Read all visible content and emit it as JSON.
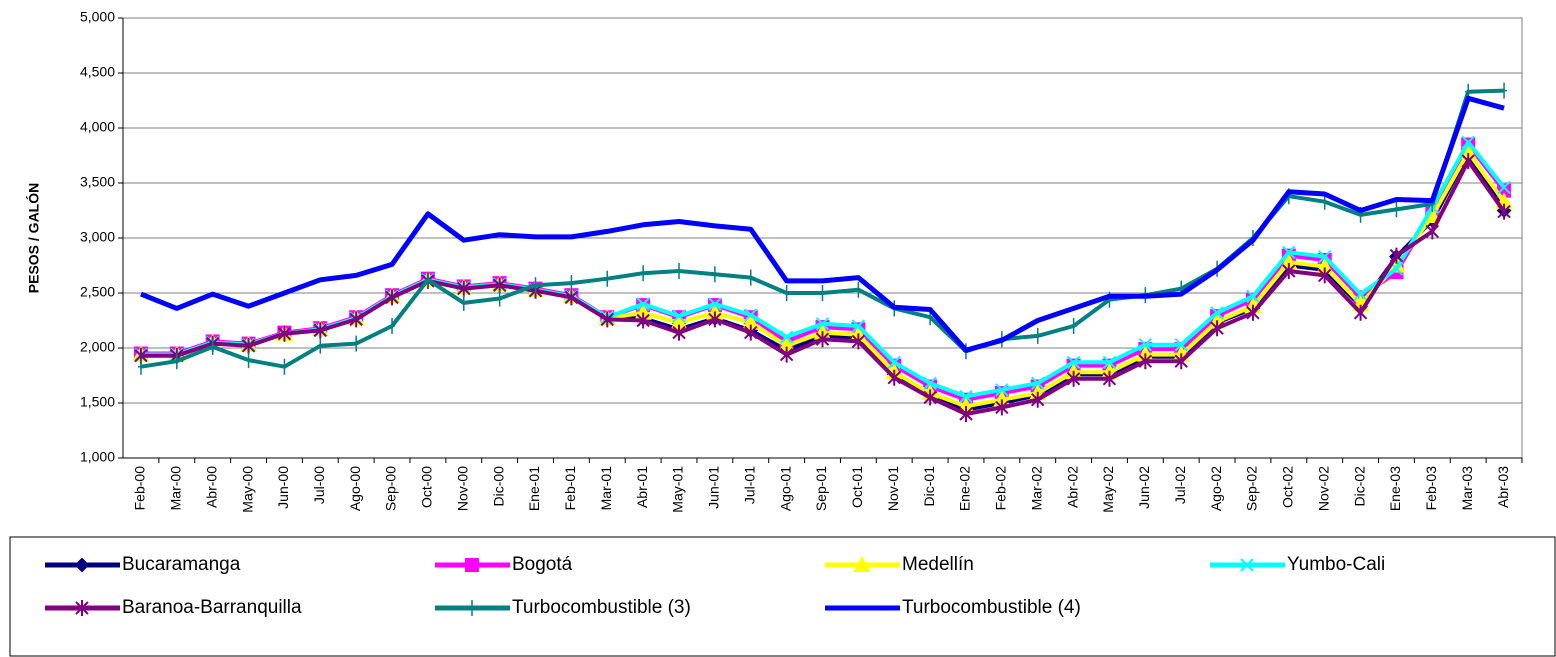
{
  "chart_data": {
    "type": "line",
    "y_label": "PESOS / GALÓN",
    "categories": [
      "Feb-00",
      "Mar-00",
      "Abr-00",
      "May-00",
      "Jun-00",
      "Jul-00",
      "Ago-00",
      "Sep-00",
      "Oct-00",
      "Nov-00",
      "Dic-00",
      "Ene-01",
      "Feb-01",
      "Mar-01",
      "Abr-01",
      "May-01",
      "Jun-01",
      "Jul-01",
      "Ago-01",
      "Sep-01",
      "Oct-01",
      "Nov-01",
      "Dic-01",
      "Ene-02",
      "Feb-02",
      "Mar-02",
      "Abr-02",
      "May-02",
      "Jun-02",
      "Jul-02",
      "Ago-02",
      "Sep-02",
      "Oct-02",
      "Nov-02",
      "Dic-02",
      "Ene-03",
      "Feb-03",
      "Mar-03",
      "Abr-03"
    ],
    "ylim": [
      1000,
      5000
    ],
    "yticks": [
      {
        "value": 1000,
        "label": "1,000"
      },
      {
        "value": 1500,
        "label": "1,500"
      },
      {
        "value": 2000,
        "label": "2,000"
      },
      {
        "value": 2500,
        "label": "2,500"
      },
      {
        "value": 3000,
        "label": "3,000"
      },
      {
        "value": 3500,
        "label": "3,500"
      },
      {
        "value": 4000,
        "label": "4,000"
      },
      {
        "value": 4500,
        "label": "4,500"
      },
      {
        "value": 5000,
        "label": "5,000"
      }
    ],
    "grid": true,
    "legend": "bottom",
    "series": [
      {
        "name": "Bucaramanga",
        "color": "#000080",
        "marker": "diamond",
        "values": [
          1940,
          1940,
          2050,
          2030,
          2140,
          2170,
          2270,
          2470,
          2620,
          2550,
          2580,
          2530,
          2470,
          2270,
          2270,
          2170,
          2270,
          2160,
          1980,
          2110,
          2090,
          1760,
          1580,
          1440,
          1500,
          1570,
          1760,
          1760,
          1920,
          1920,
          2230,
          2360,
          2750,
          2710,
          2380,
          2830,
          3160,
          3770,
          3250
        ]
      },
      {
        "name": "Bogotá",
        "color": "#ff00ff",
        "marker": "square",
        "values": [
          1950,
          1950,
          2060,
          2040,
          2140,
          2180,
          2280,
          2480,
          2630,
          2560,
          2590,
          2540,
          2480,
          2280,
          2390,
          2280,
          2390,
          2280,
          2060,
          2190,
          2170,
          1840,
          1650,
          1530,
          1590,
          1650,
          1840,
          1840,
          1990,
          1990,
          2290,
          2440,
          2840,
          2800,
          2460,
          2690,
          3240,
          3850,
          3430
        ]
      },
      {
        "name": "Medellín",
        "color": "#ffff00",
        "marker": "triangle",
        "values": [
          1940,
          1940,
          2050,
          2030,
          2130,
          2170,
          2270,
          2470,
          2620,
          2550,
          2580,
          2530,
          2470,
          2270,
          2320,
          2230,
          2320,
          2230,
          2020,
          2140,
          2120,
          1780,
          1590,
          1470,
          1530,
          1590,
          1780,
          1780,
          1940,
          1940,
          2240,
          2380,
          2780,
          2740,
          2400,
          2750,
          3200,
          3780,
          3330
        ]
      },
      {
        "name": "Yumbo-Cali",
        "color": "#00ffff",
        "marker": "x",
        "values": [
          1940,
          1940,
          2050,
          2030,
          2130,
          2170,
          2270,
          2470,
          2620,
          2550,
          2580,
          2530,
          2470,
          2280,
          2400,
          2290,
          2400,
          2300,
          2100,
          2220,
          2200,
          1870,
          1680,
          1560,
          1620,
          1680,
          1870,
          1870,
          2030,
          2030,
          2320,
          2470,
          2870,
          2830,
          2490,
          2720,
          3280,
          3870,
          3460
        ]
      },
      {
        "name": "Baranoa-Barranquilla",
        "color": "#800080",
        "marker": "star",
        "values": [
          1930,
          1930,
          2040,
          2020,
          2130,
          2160,
          2260,
          2460,
          2610,
          2540,
          2570,
          2520,
          2460,
          2260,
          2250,
          2140,
          2260,
          2140,
          1940,
          2080,
          2060,
          1730,
          1550,
          1400,
          1460,
          1530,
          1720,
          1720,
          1880,
          1880,
          2180,
          2320,
          2700,
          2660,
          2320,
          2840,
          3060,
          3700,
          3240
        ]
      },
      {
        "name": "Turbocombustible (3)",
        "color": "#008080",
        "marker": "plus",
        "values": [
          1830,
          1880,
          2010,
          1890,
          1830,
          2020,
          2040,
          2200,
          2620,
          2410,
          2450,
          2570,
          2590,
          2630,
          2680,
          2700,
          2670,
          2640,
          2500,
          2500,
          2530,
          2360,
          2280,
          1970,
          2080,
          2110,
          2200,
          2440,
          2480,
          2540,
          2720,
          3000,
          3380,
          3330,
          3210,
          3260,
          3310,
          4330,
          4340
        ]
      },
      {
        "name": "Turbocombustible (4)",
        "color": "#0000ff",
        "marker": "none",
        "values": [
          2490,
          2360,
          2490,
          2380,
          2500,
          2620,
          2660,
          2760,
          3220,
          2980,
          3030,
          3010,
          3010,
          3060,
          3120,
          3150,
          3110,
          3080,
          2610,
          2610,
          2640,
          2370,
          2350,
          1980,
          2070,
          2250,
          2360,
          2470,
          2470,
          2490,
          2710,
          2980,
          3420,
          3400,
          3250,
          3350,
          3340,
          4270,
          4180
        ]
      }
    ]
  }
}
